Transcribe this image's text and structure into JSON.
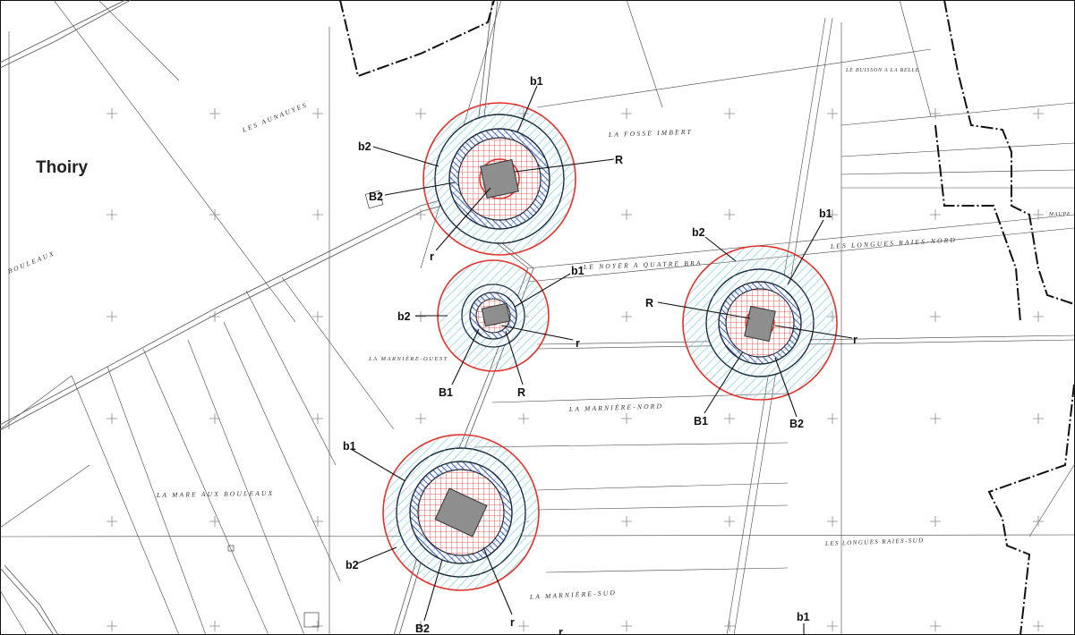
{
  "place_name": "Thoiry",
  "lieux_dits": [
    "LES AUNAUYES",
    "BOULEAUX",
    "LA FOSSE IMBERT",
    "LE BUISSON A LA BELLE",
    "LES LONGUES RAIES-NORD",
    "LE NOYER A QUATRE BRA",
    "LA MARNIÈRE-OUEST",
    "LA MARNIÈRE-NORD",
    "LA MARE AUX BOULEAUX",
    "LES LONGUES RAIES-SUD",
    "LA MARNIÈRE-SUD",
    "MAUPE"
  ],
  "zone_labels": {
    "b1": "b1",
    "b2": "b2",
    "B1": "B1",
    "B2": "B2",
    "R": "R",
    "r": "r"
  },
  "colors": {
    "outer_ring": "#e0332b",
    "hatch_light_blue": "#6cc4e6",
    "ring_dark": "#1a2a3a",
    "hatch_dark_blue": "#2233aa",
    "grid_red": "#e0332b",
    "building": "#8e8e8e"
  }
}
